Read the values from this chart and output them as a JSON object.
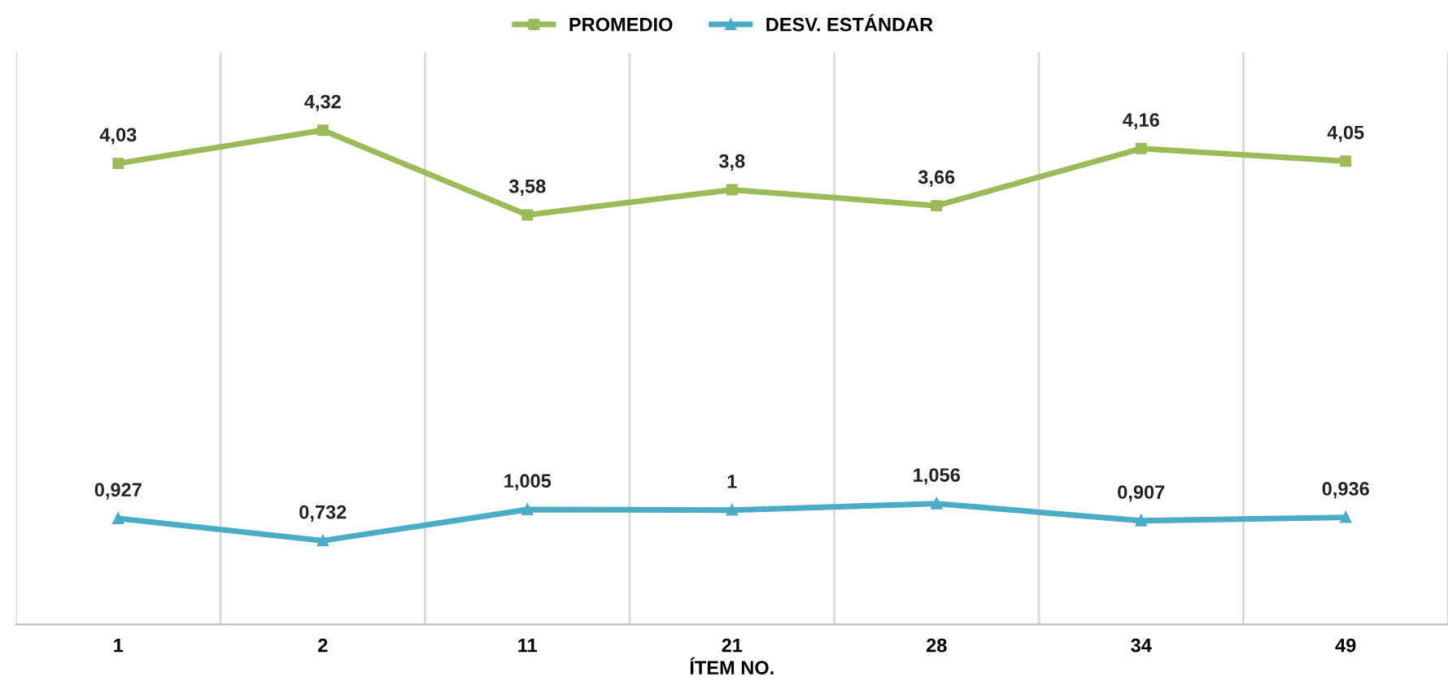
{
  "chart_data": {
    "type": "line",
    "xlabel": "ÍTEM NO.",
    "categories": [
      "1",
      "2",
      "11",
      "21",
      "28",
      "34",
      "49"
    ],
    "series": [
      {
        "name": "PROMEDIO",
        "color": "#9bbb59",
        "marker": "square",
        "values": [
          4.03,
          4.32,
          3.58,
          3.8,
          3.66,
          4.16,
          4.05
        ],
        "value_labels": [
          "4,03",
          "4,32",
          "3,58",
          "3,8",
          "3,66",
          "4,16",
          "4,05"
        ]
      },
      {
        "name": "DESV. ESTÁNDAR",
        "color": "#4bacc6",
        "marker": "triangle",
        "values": [
          0.927,
          0.732,
          1.005,
          1,
          1.056,
          0.907,
          0.936
        ],
        "value_labels": [
          "0,927",
          "0,732",
          "1,005",
          "1",
          "1,056",
          "0,907",
          "0,936"
        ]
      }
    ],
    "ylim": [
      0,
      5
    ],
    "tick_labels": "x",
    "grid": "x",
    "legend": "top",
    "line_style": "solid"
  }
}
